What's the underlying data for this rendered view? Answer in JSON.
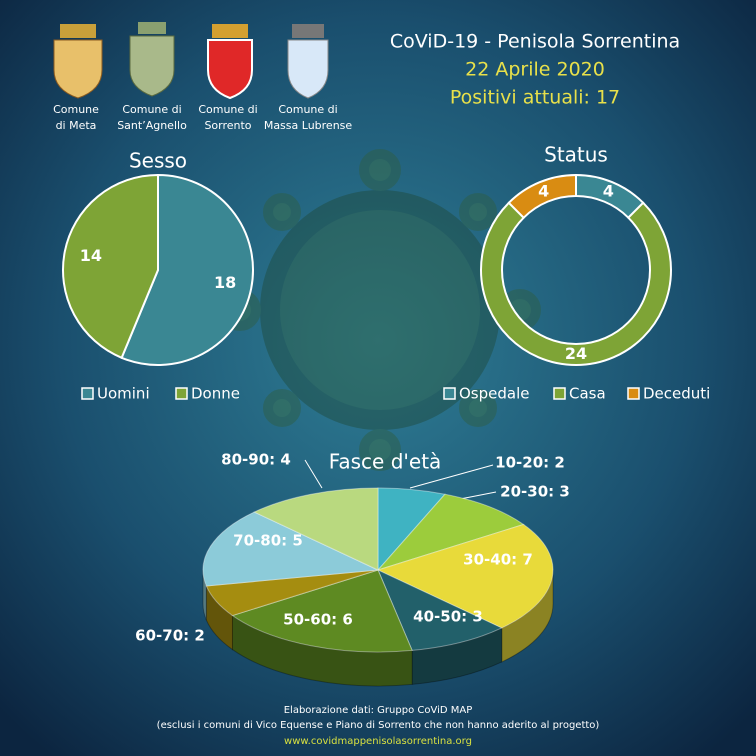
{
  "header": {
    "title": "CoViD-19  - Penisola Sorrentina",
    "date": "22 Aprile 2020",
    "positives": "Positivi attuali: 17",
    "comuni": [
      [
        "Comune",
        "di Meta"
      ],
      [
        "Comune di",
        "Sant’Agnello"
      ],
      [
        "Comune di",
        "Sorrento"
      ],
      [
        "Comune di",
        "Massa Lubrense"
      ]
    ]
  },
  "chart_data": [
    {
      "type": "pie",
      "title": "Sesso",
      "categories": [
        "Uomini",
        "Donne"
      ],
      "values": [
        18,
        14
      ],
      "colors": [
        "#3a8793",
        "#7ea436"
      ]
    },
    {
      "type": "donut",
      "title": "Status",
      "categories": [
        "Ospedale",
        "Casa",
        "Deceduti"
      ],
      "values": [
        4,
        24,
        4
      ],
      "colors": [
        "#3a8793",
        "#7ea436",
        "#d98c12"
      ]
    },
    {
      "type": "pie3d",
      "title": "Fasce d'età",
      "values": [
        2,
        3,
        7,
        3,
        6,
        2,
        5,
        4
      ],
      "value_labels": [
        "10-20:  2",
        "20-30:  3",
        "30-40:  7",
        "40-50:  3",
        "50-60:  6",
        "60-70:  2",
        "70-80:  5",
        "80-90:  4"
      ],
      "colors": [
        "#3fb3c2",
        "#9ccc3c",
        "#e8da3a",
        "#22606a",
        "#5e8a22",
        "#a58d10",
        "#8ccbd9",
        "#b9d97f"
      ]
    }
  ],
  "footer": {
    "credit": "Elaborazione  dati: Gruppo CoViD MAP",
    "note": "(esclusi i comuni di Vico Equense e Piano di Sorrento che non hanno aderito al progetto)",
    "url": "www.covidmappenisolasorrentina.org"
  }
}
